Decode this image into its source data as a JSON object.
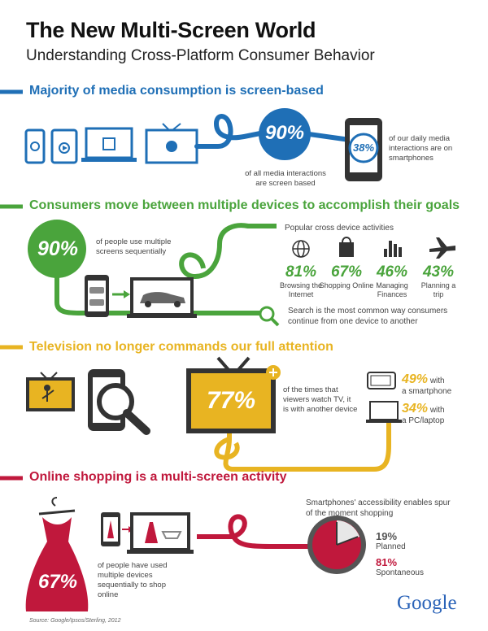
{
  "header": {
    "title": "The New Multi-Screen World",
    "subtitle": "Understanding Cross-Platform Consumer Behavior"
  },
  "colors": {
    "blue": "#1f6fb6",
    "green": "#4aa43c",
    "yellow": "#e8b422",
    "red": "#c0183c",
    "dark": "#333333"
  },
  "section1": {
    "heading": "Majority of media consumption is screen-based",
    "big_pct": "90%",
    "big_caption": "of all media interactions are screen based",
    "phone_pct": "38%",
    "phone_caption": "of our daily media interactions are on smartphones"
  },
  "section2": {
    "heading": "Consumers move between multiple devices to accomplish their goals",
    "big_pct": "90%",
    "big_caption": "of people use multiple screens sequentially",
    "activities_title": "Popular cross device activities",
    "activities": [
      {
        "icon": "globe-icon",
        "pct": "81%",
        "label": "Browsing the Internet"
      },
      {
        "icon": "shopping-bag-icon",
        "pct": "67%",
        "label": "Shopping Online"
      },
      {
        "icon": "bar-chart-icon",
        "pct": "46%",
        "label": "Managing Finances"
      },
      {
        "icon": "airplane-icon",
        "pct": "43%",
        "label": "Planning a trip"
      }
    ],
    "search_caption": "Search is the most common way consumers continue from one device to another"
  },
  "section3": {
    "heading": "Television no longer commands our full attention",
    "big_pct": "77%",
    "big_caption": "of the times that viewers watch TV, it is with another device",
    "smartphone_pct": "49%",
    "smartphone_with": "with",
    "smartphone_label": "a smartphone",
    "pc_pct": "34%",
    "pc_with": "with",
    "pc_label": "a PC/laptop"
  },
  "section4": {
    "heading": "Online shopping is a multi-screen activity",
    "big_pct": "67%",
    "big_caption": "of people have used multiple devices sequentially to shop online",
    "spur_caption": "Smartphones' accessibility enables spur of the moment shopping",
    "planned_pct": "19%",
    "planned_label": "Planned",
    "spontaneous_pct": "81%",
    "spontaneous_label": "Spontaneous"
  },
  "footer": {
    "source": "Source: Google/Ipsos/Sterling, 2012",
    "logo": "Google"
  }
}
